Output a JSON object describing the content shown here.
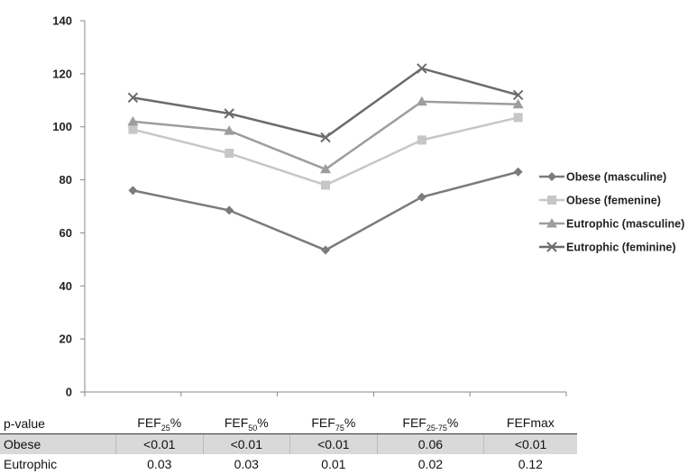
{
  "chart_data": {
    "type": "line",
    "categories": [
      "FEF25%",
      "FEF50%",
      "FEF75%",
      "FEF25-75%",
      "FEFmax"
    ],
    "ylim": [
      0,
      140
    ],
    "yticks": [
      0,
      20,
      40,
      60,
      80,
      100,
      120,
      140
    ],
    "series": [
      {
        "name": "Obese (masculine)",
        "values": [
          76,
          68.5,
          53.5,
          73.5,
          83
        ],
        "color": "#7b7b7b",
        "marker": "diamond"
      },
      {
        "name": "Obese (femenine)",
        "values": [
          99,
          90,
          78,
          95,
          103.5
        ],
        "color": "#c6c6c6",
        "marker": "square"
      },
      {
        "name": "Eutrophic (masculine)",
        "values": [
          102,
          98.5,
          84,
          109.5,
          108.5
        ],
        "color": "#9d9d9d",
        "marker": "triangle"
      },
      {
        "name": "Eutrophic (feminine)",
        "values": [
          111,
          105,
          96,
          122,
          112
        ],
        "color": "#6b6b6b",
        "marker": "x"
      }
    ],
    "legend_position": "right"
  },
  "table": {
    "header": {
      "label": "p-value",
      "cols": [
        {
          "base": "FEF",
          "sub": "25",
          "suffix": "%"
        },
        {
          "base": "FEF",
          "sub": "50",
          "suffix": "%"
        },
        {
          "base": "FEF",
          "sub": "75",
          "suffix": "%"
        },
        {
          "base": "FEF",
          "sub": "25-75",
          "suffix": "%"
        },
        {
          "base": "FEFmax",
          "sub": "",
          "suffix": ""
        }
      ]
    },
    "rows": [
      {
        "label": "Obese",
        "values": [
          "<0.01",
          "<0.01",
          "<0.01",
          "0.06",
          "<0.01"
        ]
      },
      {
        "label": "Eutrophic",
        "values": [
          "0.03",
          "0.03",
          "0.01",
          "0.02",
          "0.12"
        ]
      }
    ]
  }
}
